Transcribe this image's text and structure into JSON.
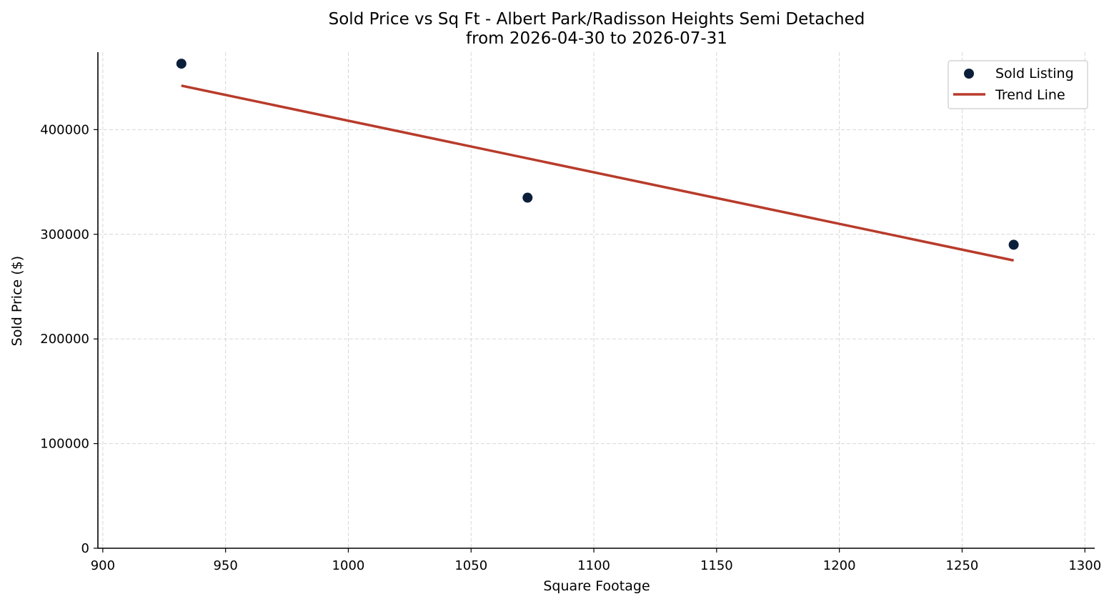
{
  "chart_data": {
    "type": "scatter",
    "title": "Sold Price vs Sq Ft - Albert Park/Radisson Heights Semi Detached",
    "subtitle": "from 2026-04-30 to 2026-07-31",
    "xlabel": "Square Footage",
    "ylabel": "Sold Price ($)",
    "xlim": [
      898,
      1304
    ],
    "ylim": [
      0,
      474000
    ],
    "xticks": [
      900,
      950,
      1000,
      1050,
      1100,
      1150,
      1200,
      1250,
      1300
    ],
    "yticks": [
      0,
      100000,
      200000,
      300000,
      400000
    ],
    "grid": true,
    "legend": {
      "placement": "top-right",
      "entries": [
        "Sold Listing",
        "Trend Line"
      ]
    },
    "series": [
      {
        "name": "Sold Listing",
        "kind": "scatter",
        "color": "#0b1f3a",
        "points": [
          {
            "x": 932,
            "y": 463000
          },
          {
            "x": 1073,
            "y": 335000
          },
          {
            "x": 1271,
            "y": 290000
          }
        ]
      },
      {
        "name": "Trend Line",
        "kind": "line",
        "color": "#b83b2b",
        "points": [
          {
            "x": 932,
            "y": 442000
          },
          {
            "x": 1271,
            "y": 275000
          }
        ]
      }
    ]
  }
}
